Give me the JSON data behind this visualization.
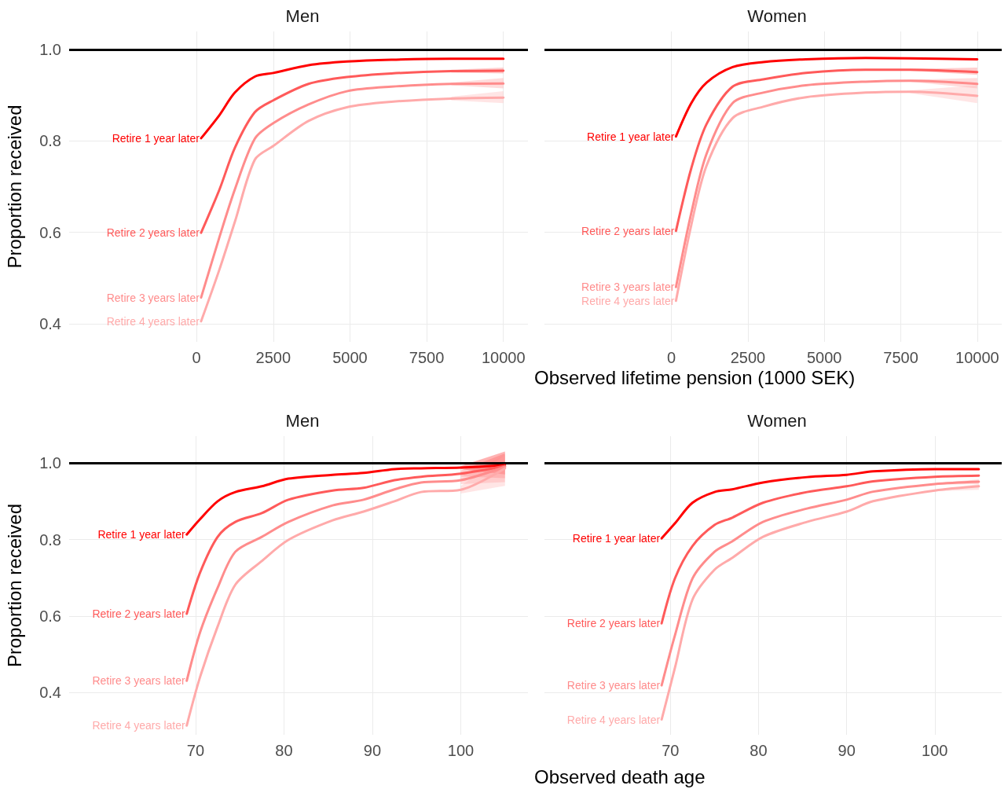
{
  "chart_data": [
    {
      "type": "line",
      "title": "Men",
      "xlabel": "Observed lifetime pension (1000 SEK)",
      "ylabel": "Proportion received",
      "x": [
        150,
        750,
        1250,
        1900,
        2500,
        3650,
        4900,
        6350,
        8300,
        10000
      ],
      "xlim": [
        -4150,
        10800
      ],
      "xticks": [
        0,
        2500,
        5000,
        7500,
        10000
      ],
      "ylim": [
        0.36,
        1.04
      ],
      "yticks": [
        0.4,
        0.6,
        0.8,
        {
          "value": 1,
          "label": "1.0"
        }
      ],
      "grid": true,
      "legend": false,
      "marker": "none",
      "line_style": "solid",
      "ref_lines": [
        {
          "axis": "y",
          "value": 1,
          "color": "#000000"
        }
      ],
      "series": [
        {
          "name": "Retire 1 year later",
          "color": "#ff0000",
          "values": [
            0.806,
            0.857,
            0.906,
            0.941,
            0.949,
            0.966,
            0.974,
            0.978,
            0.98,
            0.98
          ]
        },
        {
          "name": "Retire 2 years later",
          "color": "#ff5a5a",
          "values": [
            0.599,
            0.694,
            0.785,
            0.863,
            0.889,
            0.925,
            0.94,
            0.948,
            0.953,
            0.954
          ],
          "lower": [
            null,
            null,
            null,
            null,
            null,
            null,
            null,
            null,
            0.95,
            0.948
          ],
          "upper": [
            null,
            null,
            null,
            null,
            null,
            null,
            null,
            null,
            0.956,
            0.961
          ]
        },
        {
          "name": "Retire 3 years later",
          "color": "#ff8c8c",
          "values": [
            0.457,
            0.59,
            0.694,
            0.805,
            0.839,
            0.88,
            0.909,
            0.919,
            0.925,
            0.926
          ],
          "lower": [
            null,
            null,
            null,
            null,
            null,
            null,
            null,
            null,
            0.922,
            0.915
          ],
          "upper": [
            null,
            null,
            null,
            null,
            null,
            null,
            null,
            null,
            0.928,
            0.938
          ]
        },
        {
          "name": "Retire 4 years later",
          "color": "#ffaaaa",
          "values": [
            0.405,
            0.519,
            0.623,
            0.759,
            0.789,
            0.844,
            0.874,
            0.886,
            0.893,
            0.895
          ],
          "lower": [
            null,
            null,
            null,
            null,
            null,
            null,
            null,
            null,
            0.889,
            0.883
          ],
          "upper": [
            null,
            null,
            null,
            null,
            null,
            null,
            null,
            null,
            0.897,
            0.909
          ]
        }
      ]
    },
    {
      "type": "line",
      "title": "Women",
      "x": [
        150,
        650,
        1150,
        2000,
        3000,
        4400,
        6350,
        7800,
        10000
      ],
      "xlim": [
        -4150,
        10800
      ],
      "xticks": [
        0,
        2500,
        5000,
        7500,
        10000
      ],
      "ylim": [
        0.36,
        1.04
      ],
      "yticks": [
        0.4,
        0.6,
        0.8,
        1
      ],
      "tick_labels": "x",
      "grid": true,
      "legend": false,
      "marker": "none",
      "line_style": "solid",
      "ref_lines": [
        {
          "axis": "y",
          "value": 1,
          "color": "#000000"
        }
      ],
      "series": [
        {
          "name": "Retire 1 year later",
          "color": "#ff0000",
          "values": [
            0.81,
            0.883,
            0.928,
            0.962,
            0.973,
            0.979,
            0.982,
            0.981,
            0.979
          ]
        },
        {
          "name": "Retire 2 years later",
          "color": "#ff5a5a",
          "values": [
            0.603,
            0.74,
            0.837,
            0.919,
            0.935,
            0.949,
            0.956,
            0.956,
            0.951
          ],
          "lower": [
            null,
            null,
            null,
            null,
            null,
            null,
            null,
            0.954,
            0.945
          ],
          "upper": [
            null,
            null,
            null,
            null,
            null,
            null,
            null,
            0.958,
            0.961
          ]
        },
        {
          "name": "Retire 3 years later",
          "color": "#ff8c8c",
          "values": [
            0.48,
            0.642,
            0.772,
            0.883,
            0.906,
            0.922,
            0.93,
            0.932,
            0.925
          ],
          "lower": [
            null,
            null,
            null,
            null,
            null,
            null,
            null,
            0.93,
            0.915
          ],
          "upper": [
            null,
            null,
            null,
            null,
            null,
            null,
            null,
            0.934,
            0.938
          ]
        },
        {
          "name": "Retire 4 years later",
          "color": "#ffaaaa",
          "values": [
            0.45,
            0.616,
            0.746,
            0.85,
            0.875,
            0.896,
            0.906,
            0.908,
            0.899
          ],
          "lower": [
            null,
            null,
            null,
            null,
            null,
            null,
            null,
            0.905,
            0.883
          ],
          "upper": [
            null,
            null,
            null,
            null,
            null,
            null,
            null,
            0.911,
            0.922
          ]
        }
      ]
    },
    {
      "type": "line",
      "title": "Men",
      "xlabel": "Observed death age",
      "ylabel": "Proportion received",
      "x": [
        69,
        70.5,
        72.5,
        74.5,
        77.5,
        80.5,
        85.5,
        89,
        92.5,
        95.5,
        100,
        105
      ],
      "xlim": [
        55.7,
        107.6
      ],
      "xticks": [
        70,
        80,
        90,
        100
      ],
      "ylim": [
        0.29,
        1.07
      ],
      "yticks": [
        0.4,
        0.6,
        0.8,
        {
          "value": 1,
          "label": "1.0"
        }
      ],
      "grid": true,
      "legend": false,
      "marker": "none",
      "line_style": "solid",
      "ref_lines": [
        {
          "axis": "y",
          "value": 1,
          "color": "#000000"
        }
      ],
      "series": [
        {
          "name": "Retire 1 year later",
          "color": "#ff0000",
          "values": [
            0.813,
            0.853,
            0.9,
            0.924,
            0.939,
            0.959,
            0.969,
            0.974,
            0.984,
            0.986,
            0.988,
            0.994
          ],
          "lower": [
            null,
            null,
            null,
            null,
            null,
            null,
            null,
            null,
            null,
            null,
            0.984,
            0.97
          ],
          "upper": [
            null,
            null,
            null,
            null,
            null,
            null,
            null,
            null,
            null,
            null,
            0.992,
            1.03
          ]
        },
        {
          "name": "Retire 2 years later",
          "color": "#ff5a5a",
          "values": [
            0.606,
            0.713,
            0.807,
            0.846,
            0.869,
            0.904,
            0.928,
            0.935,
            0.955,
            0.964,
            0.972,
            0.992
          ],
          "lower": [
            null,
            null,
            null,
            null,
            null,
            null,
            null,
            null,
            null,
            null,
            0.965,
            0.96
          ],
          "upper": [
            null,
            null,
            null,
            null,
            null,
            null,
            null,
            null,
            null,
            null,
            0.98,
            1.025
          ]
        },
        {
          "name": "Retire 3 years later",
          "color": "#ff8c8c",
          "values": [
            0.431,
            0.557,
            0.674,
            0.768,
            0.807,
            0.846,
            0.889,
            0.904,
            0.931,
            0.949,
            0.955,
            0.99
          ],
          "lower": [
            null,
            null,
            null,
            null,
            null,
            null,
            null,
            null,
            null,
            null,
            0.945,
            0.95
          ],
          "upper": [
            null,
            null,
            null,
            null,
            null,
            null,
            null,
            null,
            null,
            null,
            0.965,
            1.02
          ]
        },
        {
          "name": "Retire 4 years later",
          "color": "#ffaaaa",
          "values": [
            0.314,
            0.44,
            0.573,
            0.682,
            0.744,
            0.799,
            0.85,
            0.873,
            0.9,
            0.924,
            0.93,
            0.986
          ],
          "lower": [
            null,
            null,
            null,
            null,
            null,
            null,
            null,
            null,
            null,
            null,
            0.92,
            0.94
          ],
          "upper": [
            null,
            null,
            null,
            null,
            null,
            null,
            null,
            null,
            null,
            null,
            0.94,
            1.02
          ]
        }
      ]
    },
    {
      "type": "line",
      "title": "Women",
      "x": [
        69,
        70.5,
        72.5,
        75,
        77,
        80.5,
        85.5,
        90,
        93,
        100,
        105
      ],
      "xlim": [
        55.7,
        107.6
      ],
      "xticks": [
        70,
        80,
        90,
        100
      ],
      "ylim": [
        0.29,
        1.07
      ],
      "yticks": [
        0.4,
        0.6,
        0.8,
        1
      ],
      "tick_labels": "x",
      "grid": true,
      "legend": false,
      "marker": "none",
      "line_style": "solid",
      "ref_lines": [
        {
          "axis": "y",
          "value": 1,
          "color": "#000000"
        }
      ],
      "series": [
        {
          "name": "Retire 1 year later",
          "color": "#ff0000",
          "values": [
            0.803,
            0.842,
            0.896,
            0.924,
            0.931,
            0.949,
            0.963,
            0.969,
            0.978,
            0.984,
            0.984
          ]
        },
        {
          "name": "Retire 2 years later",
          "color": "#ff5a5a",
          "values": [
            0.581,
            0.698,
            0.783,
            0.838,
            0.857,
            0.896,
            0.924,
            0.939,
            0.952,
            0.964,
            0.967
          ]
        },
        {
          "name": "Retire 3 years later",
          "color": "#ff8c8c",
          "values": [
            0.419,
            0.549,
            0.698,
            0.768,
            0.795,
            0.846,
            0.881,
            0.904,
            0.925,
            0.945,
            0.951
          ],
          "lower": [
            null,
            null,
            null,
            null,
            null,
            null,
            null,
            null,
            null,
            0.943,
            0.945
          ],
          "upper": [
            null,
            null,
            null,
            null,
            null,
            null,
            null,
            null,
            null,
            0.947,
            0.957
          ]
        },
        {
          "name": "Retire 4 years later",
          "color": "#ffaaaa",
          "values": [
            0.33,
            0.464,
            0.643,
            0.721,
            0.752,
            0.807,
            0.846,
            0.873,
            0.9,
            0.928,
            0.939
          ],
          "lower": [
            null,
            null,
            null,
            null,
            null,
            null,
            null,
            null,
            null,
            0.926,
            0.93
          ],
          "upper": [
            null,
            null,
            null,
            null,
            null,
            null,
            null,
            null,
            null,
            0.93,
            0.945
          ]
        }
      ]
    }
  ]
}
